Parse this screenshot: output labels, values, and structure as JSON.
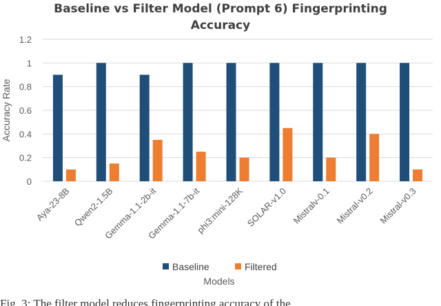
{
  "chart_data": {
    "type": "bar",
    "title_lines": [
      "Baseline vs Filter Model (Prompt 6) Fingerprinting",
      "Accuracy"
    ],
    "xlabel": "Models",
    "ylabel": "Accuracy Rate",
    "categories": [
      "Aya-23-8B",
      "Qwen2-1.5B",
      "Gemma-1.1-2b-it",
      "Gemma-1.1-7b-it",
      "phi3:mini-128K",
      "SOLAR-v1.0",
      "Mistralv-0.1",
      "Mistral-v0.2",
      "Mistral-v0.3"
    ],
    "series": [
      {
        "name": "Baseline",
        "color": "#1f4e79",
        "values": [
          0.9,
          1.0,
          0.9,
          1.0,
          1.0,
          1.0,
          1.0,
          1.0,
          1.0
        ]
      },
      {
        "name": "Filtered",
        "color": "#ed7d31",
        "values": [
          0.1,
          0.15,
          0.35,
          0.25,
          0.2,
          0.45,
          0.2,
          0.4,
          0.1
        ]
      }
    ],
    "ylim": [
      0,
      1.2
    ],
    "yticks": [
      "0",
      "0.2",
      "0.4",
      "0.6",
      "0.8",
      "1",
      "1.2"
    ],
    "grid": true,
    "legend_position": "bottom"
  },
  "caption": "Fig. 3: The filter model reduces fingerprinting accuracy of the"
}
